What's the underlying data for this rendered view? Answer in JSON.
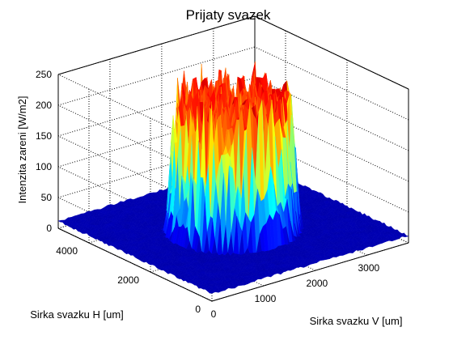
{
  "chart_data": {
    "type": "surface3d",
    "title": "Prijaty svazek",
    "xlabel": "Sirka svazku V  [um]",
    "ylabel": "Sirka svazku H [um]",
    "zlabel": "Intenzita zareni  [W/m2]",
    "x_ticks": [
      "0",
      "1000",
      "2000",
      "3000"
    ],
    "y_ticks": [
      "0",
      "2000",
      "4000"
    ],
    "z_ticks": [
      "0",
      "50",
      "100",
      "150",
      "200",
      "250"
    ],
    "xlim": [
      0,
      3800
    ],
    "ylim": [
      0,
      5000
    ],
    "zlim": [
      0,
      250
    ],
    "grid": true,
    "colormap": "jet",
    "surface": {
      "description_free": true,
      "background_level": 10,
      "plateau_level": 200,
      "plateau_center": [
        1900,
        2500
      ],
      "plateau_radius_x": 1050,
      "plateau_radius_y": 1350,
      "noise": 25
    }
  }
}
